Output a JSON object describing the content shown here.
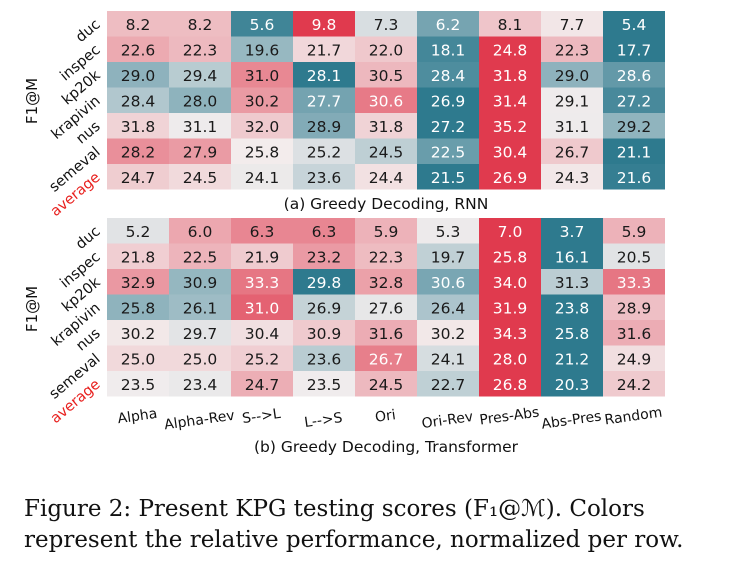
{
  "caption": "Figure 2: Present KPG testing scores (F₁@ℳ). Colors represent the relative performance, normalized per row.",
  "colors": {
    "low": "#2e7a8e",
    "mid": "#f3eeee",
    "high": "#e03a4e",
    "highlight_label": "#e8201e"
  },
  "chart_data": [
    {
      "type": "heatmap",
      "title": "(a) Greedy Decoding, RNN",
      "ylabel": "F1@M",
      "rows": [
        "duc",
        "inspec",
        "kp20k",
        "krapivin",
        "nus",
        "semeval",
        "average"
      ],
      "highlight_row": "average",
      "columns": [],
      "values": [
        [
          8.2,
          8.2,
          5.6,
          9.8,
          7.3,
          6.2,
          8.1,
          7.7,
          5.4
        ],
        [
          22.6,
          22.3,
          19.6,
          21.7,
          22.0,
          18.1,
          24.8,
          22.3,
          17.7
        ],
        [
          29.0,
          29.4,
          31.0,
          28.1,
          30.5,
          28.4,
          31.8,
          29.0,
          28.6
        ],
        [
          28.4,
          28.0,
          30.2,
          27.7,
          30.6,
          26.9,
          31.4,
          29.1,
          27.2
        ],
        [
          31.8,
          31.1,
          32.0,
          28.9,
          31.8,
          27.2,
          35.2,
          31.1,
          29.2
        ],
        [
          28.2,
          27.9,
          25.8,
          25.2,
          24.5,
          22.5,
          30.4,
          26.7,
          21.1
        ],
        [
          24.7,
          24.5,
          24.1,
          23.6,
          24.4,
          21.5,
          26.9,
          24.3,
          21.6
        ]
      ]
    },
    {
      "type": "heatmap",
      "title": "(b) Greedy Decoding, Transformer",
      "ylabel": "F1@M",
      "rows": [
        "duc",
        "inspec",
        "kp20k",
        "krapivin",
        "nus",
        "semeval",
        "average"
      ],
      "highlight_row": "average",
      "columns": [
        "Alpha",
        "Alpha-Rev",
        "S-->L",
        "L-->S",
        "Ori",
        "Ori-Rev",
        "Pres-Abs",
        "Abs-Pres",
        "Random"
      ],
      "values": [
        [
          5.2,
          6.0,
          6.3,
          6.3,
          5.9,
          5.3,
          7.0,
          3.7,
          5.9
        ],
        [
          21.8,
          22.5,
          21.9,
          23.2,
          22.3,
          19.7,
          25.8,
          16.1,
          20.5
        ],
        [
          32.9,
          30.9,
          33.3,
          29.8,
          32.8,
          30.6,
          34.0,
          31.3,
          33.3
        ],
        [
          25.8,
          26.1,
          31.0,
          26.9,
          27.6,
          26.4,
          31.9,
          23.8,
          28.9
        ],
        [
          30.2,
          29.7,
          30.4,
          30.9,
          31.6,
          30.2,
          34.3,
          25.8,
          31.6
        ],
        [
          25.0,
          25.0,
          25.2,
          23.6,
          26.7,
          24.1,
          28.0,
          21.2,
          24.9
        ],
        [
          23.5,
          23.4,
          24.7,
          23.5,
          24.5,
          22.7,
          26.8,
          20.3,
          24.2
        ]
      ]
    }
  ]
}
